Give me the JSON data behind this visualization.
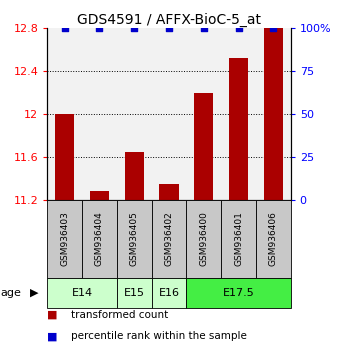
{
  "title": "GDS4591 / AFFX-BioC-5_at",
  "samples": [
    "GSM936403",
    "GSM936404",
    "GSM936405",
    "GSM936402",
    "GSM936400",
    "GSM936401",
    "GSM936406"
  ],
  "transformed_counts": [
    12.0,
    11.28,
    11.65,
    11.35,
    12.2,
    12.52,
    12.8
  ],
  "percentile_ranks": [
    100,
    100,
    100,
    100,
    100,
    100,
    100
  ],
  "age_groups": [
    {
      "label": "E14",
      "start": 0,
      "end": 2,
      "color": "#ccffcc"
    },
    {
      "label": "E15",
      "start": 2,
      "end": 3,
      "color": "#ccffcc"
    },
    {
      "label": "E16",
      "start": 3,
      "end": 4,
      "color": "#ccffcc"
    },
    {
      "label": "E17.5",
      "start": 4,
      "end": 7,
      "color": "#44ee44"
    }
  ],
  "ylim_left": [
    11.2,
    12.8
  ],
  "ylim_right": [
    0,
    100
  ],
  "yticks_left": [
    11.2,
    11.6,
    12.0,
    12.4,
    12.8
  ],
  "yticks_right": [
    0,
    25,
    50,
    75,
    100
  ],
  "bar_color": "#aa0000",
  "percentile_color": "#0000cc",
  "sample_box_color": "#c8c8c8",
  "legend_red_label": "transformed count",
  "legend_blue_label": "percentile rank within the sample",
  "age_label": "age",
  "title_fontsize": 10,
  "tick_fontsize": 8,
  "sample_fontsize": 6.5,
  "age_fontsize": 8,
  "legend_fontsize": 7.5
}
